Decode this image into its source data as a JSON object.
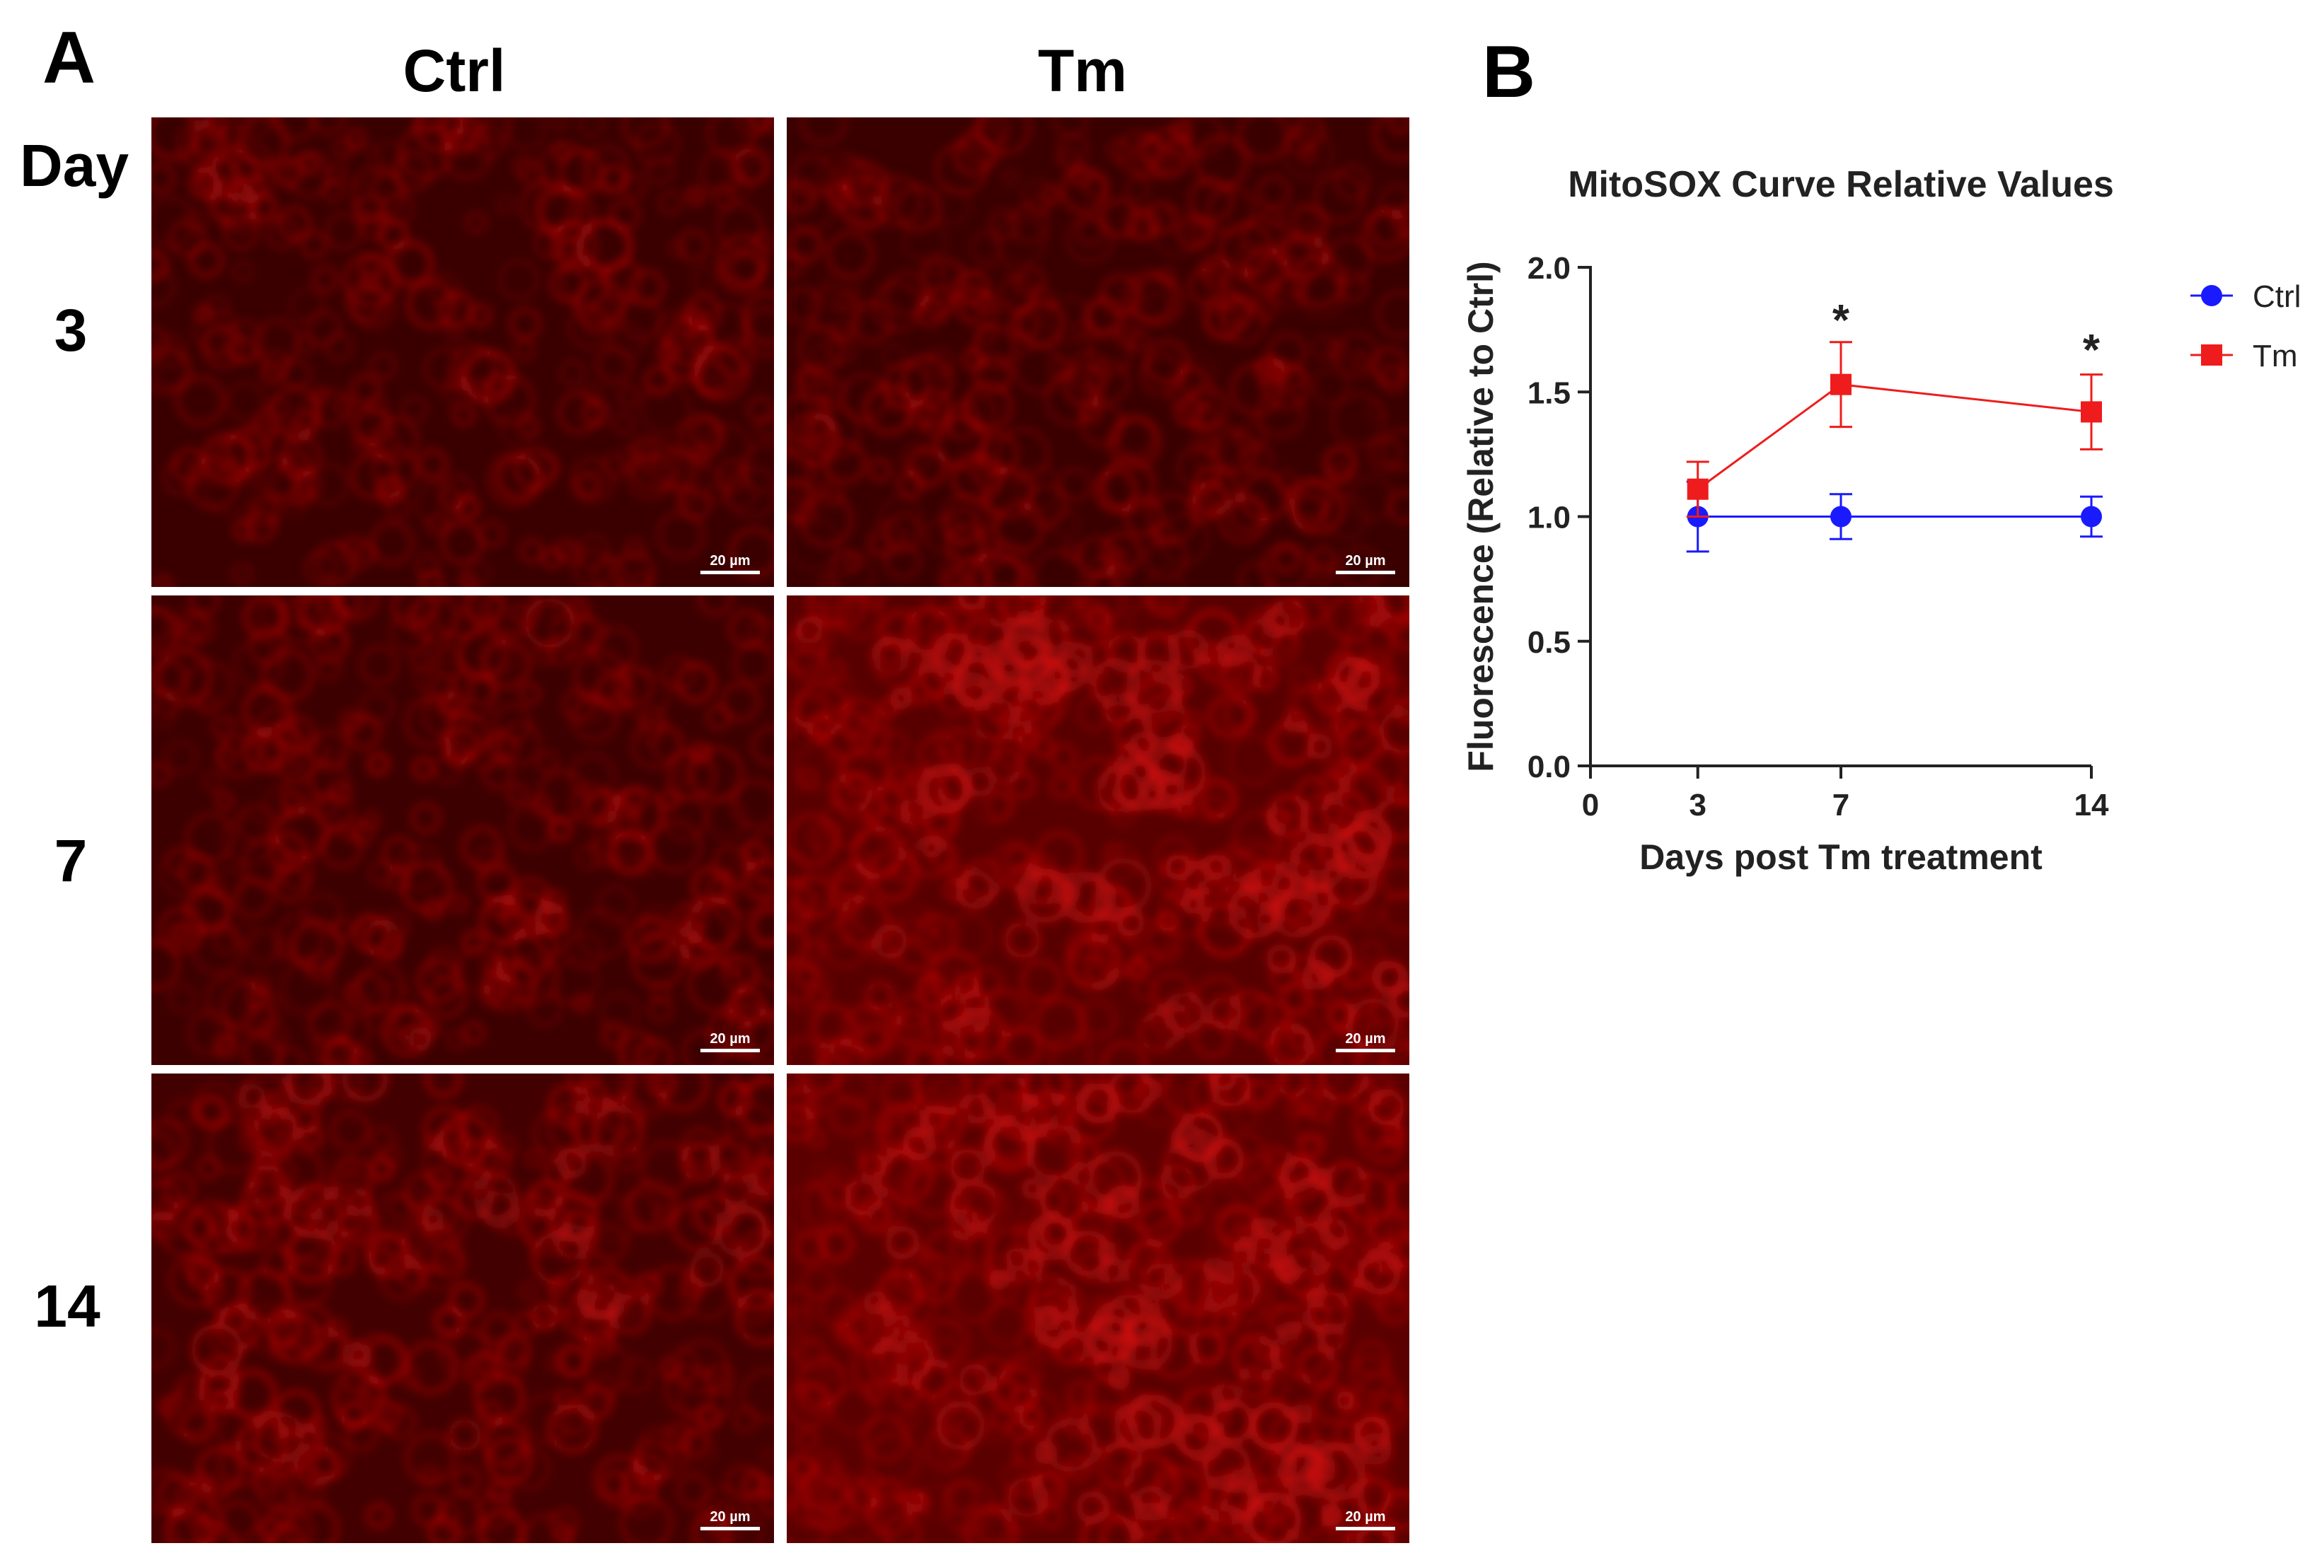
{
  "panel_a": {
    "letter": "A",
    "columns": [
      "Ctrl",
      "Tm"
    ],
    "day_label": "Day",
    "rows": [
      "3",
      "7",
      "14"
    ],
    "scale_bar": "20 µm",
    "image_tint": "#e01010",
    "intensity": [
      [
        0.3,
        0.3
      ],
      [
        0.35,
        0.8
      ],
      [
        0.45,
        0.85
      ]
    ]
  },
  "panel_b": {
    "letter": "B",
    "chart_data": {
      "type": "line",
      "title": "MitoSOX Curve Relative Values",
      "xlabel": "Days post Tm treatment",
      "ylabel": "Fluorescence (Relative to Ctrl)",
      "xlim": [
        0,
        14
      ],
      "ylim": [
        0,
        2.0
      ],
      "xticks": [
        0,
        3,
        7,
        14
      ],
      "yticks": [
        0.0,
        0.5,
        1.0,
        1.5,
        2.0
      ],
      "ytick_labels": [
        "0.0",
        "0.5",
        "1.0",
        "1.5",
        "2.0"
      ],
      "legend_position": "right",
      "series": [
        {
          "name": "Ctrl",
          "color": "#1a1aff",
          "marker": "circle",
          "x": [
            3,
            7,
            14
          ],
          "y": [
            1.0,
            1.0,
            1.0
          ],
          "err": [
            0.14,
            0.09,
            0.08
          ]
        },
        {
          "name": "Tm",
          "color": "#ee1c1c",
          "marker": "square",
          "x": [
            3,
            7,
            14
          ],
          "y": [
            1.11,
            1.53,
            1.42
          ],
          "err": [
            0.11,
            0.17,
            0.15
          ]
        }
      ],
      "annotations": [
        {
          "x": 7,
          "y": 1.7,
          "text": "*"
        },
        {
          "x": 14,
          "y": 1.58,
          "text": "*"
        }
      ]
    }
  }
}
